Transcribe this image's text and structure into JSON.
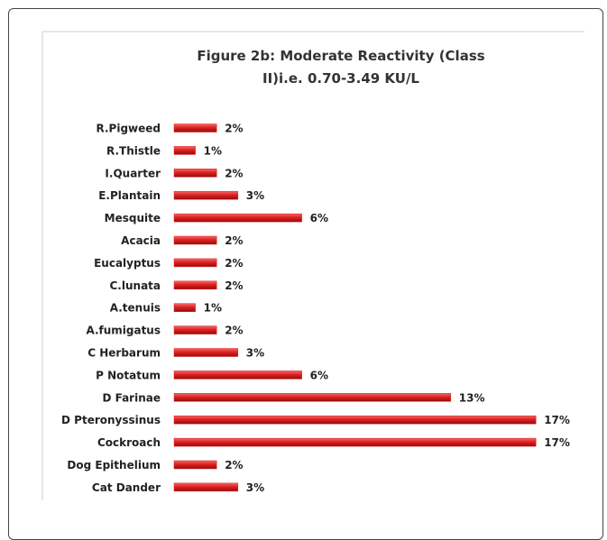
{
  "chart_data": {
    "type": "bar",
    "orientation": "horizontal",
    "title": "Figure 2b: Moderate Reactivity (Class II)i.e. 0.70-3.49 KU/L",
    "categories": [
      "R.Pigweed",
      "R.Thistle",
      "I.Quarter",
      "E.Plantain",
      "Mesquite",
      "Acacia",
      "Eucalyptus",
      "C.lunata",
      "A.tenuis",
      "A.fumigatus",
      "C Herbarum",
      "P Notatum",
      "D Farinae",
      "D Pteronyssinus",
      "Cockroach",
      "Dog Epithelium",
      "Cat Dander"
    ],
    "values": [
      2,
      1,
      2,
      3,
      6,
      2,
      2,
      2,
      1,
      2,
      3,
      6,
      13,
      17,
      17,
      2,
      3
    ],
    "value_labels": [
      "2%",
      "1%",
      "2%",
      "3%",
      "6%",
      "2%",
      "2%",
      "2%",
      "1%",
      "2%",
      "3%",
      "6%",
      "13%",
      "17%",
      "17%",
      "2%",
      "3%"
    ],
    "color": "#e0201f"
  }
}
